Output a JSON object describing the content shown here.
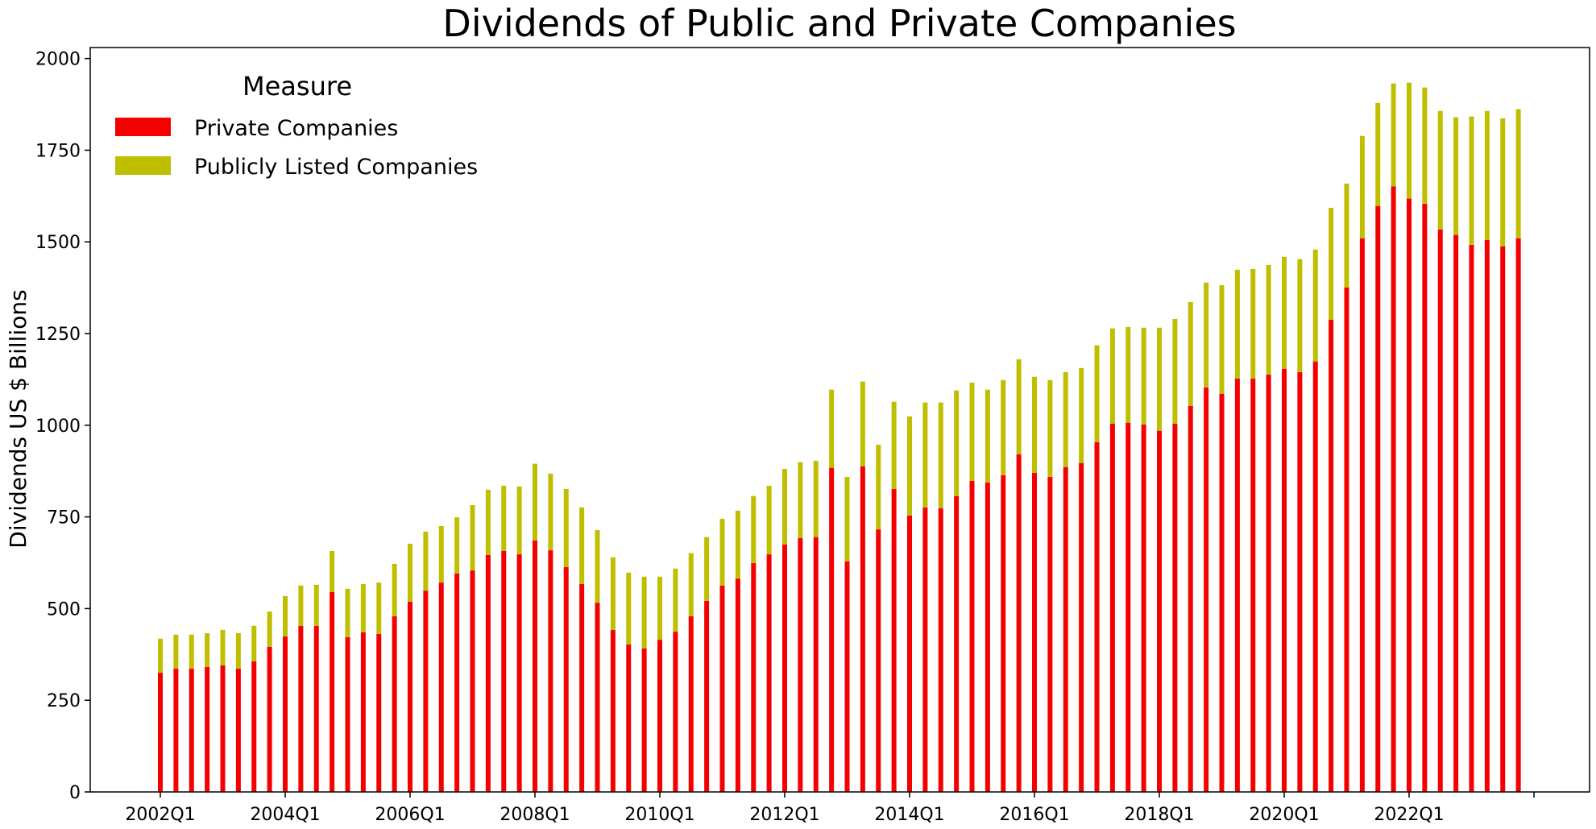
{
  "chart_data": {
    "type": "bar",
    "stacked": true,
    "title": "Dividends of Public and Private Companies",
    "xlabel": "",
    "ylabel": "Dividends US $ Billions",
    "ylim": [
      0,
      2030
    ],
    "yticks": [
      0,
      250,
      500,
      750,
      1000,
      1250,
      1500,
      1750,
      2000
    ],
    "xtick_labels": [
      "2002Q1",
      "2004Q1",
      "2006Q1",
      "2008Q1",
      "2010Q1",
      "2012Q1",
      "2014Q1",
      "2016Q1",
      "2018Q1",
      "2020Q1",
      "2022Q1",
      ""
    ],
    "xtick_every_n_quarters": 8,
    "grid": false,
    "legend": {
      "title": "Measure",
      "placement": "top-left",
      "entries": [
        {
          "label": "Private Companies",
          "color": "#f50000"
        },
        {
          "label": "Publicly Listed Companies",
          "color": "#bfbf00"
        }
      ]
    },
    "categories": [
      "2002Q1",
      "2002Q2",
      "2002Q3",
      "2002Q4",
      "2003Q1",
      "2003Q2",
      "2003Q3",
      "2003Q4",
      "2004Q1",
      "2004Q2",
      "2004Q3",
      "2004Q4",
      "2005Q1",
      "2005Q2",
      "2005Q3",
      "2005Q4",
      "2006Q1",
      "2006Q2",
      "2006Q3",
      "2006Q4",
      "2007Q1",
      "2007Q2",
      "2007Q3",
      "2007Q4",
      "2008Q1",
      "2008Q2",
      "2008Q3",
      "2008Q4",
      "2009Q1",
      "2009Q2",
      "2009Q3",
      "2009Q4",
      "2010Q1",
      "2010Q2",
      "2010Q3",
      "2010Q4",
      "2011Q1",
      "2011Q2",
      "2011Q3",
      "2011Q4",
      "2012Q1",
      "2012Q2",
      "2012Q3",
      "2012Q4",
      "2013Q1",
      "2013Q2",
      "2013Q3",
      "2013Q4",
      "2014Q1",
      "2014Q2",
      "2014Q3",
      "2014Q4",
      "2015Q1",
      "2015Q2",
      "2015Q3",
      "2015Q4",
      "2016Q1",
      "2016Q2",
      "2016Q3",
      "2016Q4",
      "2017Q1",
      "2017Q2",
      "2017Q3",
      "2017Q4",
      "2018Q1",
      "2018Q2",
      "2018Q3",
      "2018Q4",
      "2019Q1",
      "2019Q2",
      "2019Q3",
      "2019Q4",
      "2020Q1",
      "2020Q2",
      "2020Q3",
      "2020Q4",
      "2021Q1",
      "2021Q2",
      "2021Q3",
      "2021Q4",
      "2022Q1",
      "2022Q2",
      "2022Q3",
      "2022Q4",
      "2023Q1",
      "2023Q2",
      "2023Q3",
      "2023Q4"
    ],
    "series": [
      {
        "name": "Private Companies",
        "color": "#f50000",
        "values": [
          325,
          336,
          336,
          341,
          345,
          336,
          356,
          396,
          424,
          453,
          453,
          545,
          422,
          435,
          431,
          479,
          519,
          549,
          571,
          596,
          604,
          646,
          657,
          648,
          686,
          659,
          613,
          567,
          516,
          442,
          402,
          391,
          415,
          437,
          479,
          521,
          563,
          582,
          624,
          648,
          675,
          692,
          695,
          884,
          629,
          888,
          716,
          826,
          754,
          776,
          774,
          807,
          848,
          844,
          864,
          921,
          870,
          859,
          886,
          897,
          954,
          1004,
          1007,
          1002,
          985,
          1004,
          1053,
          1103,
          1086,
          1127,
          1127,
          1138,
          1154,
          1145,
          1174,
          1288,
          1376,
          1510,
          1598,
          1651,
          1618,
          1604,
          1534,
          1519,
          1492,
          1505,
          1488,
          1510
        ]
      },
      {
        "name": "Publicly Listed Companies",
        "color": "#bfbf00",
        "values": [
          93,
          93,
          93,
          92,
          97,
          97,
          97,
          96,
          110,
          110,
          112,
          112,
          132,
          132,
          140,
          143,
          158,
          161,
          154,
          153,
          178,
          178,
          178,
          185,
          209,
          209,
          213,
          209,
          198,
          198,
          196,
          196,
          172,
          172,
          172,
          174,
          182,
          185,
          183,
          187,
          206,
          207,
          208,
          213,
          230,
          231,
          231,
          238,
          270,
          286,
          288,
          288,
          268,
          253,
          259,
          259,
          262,
          264,
          259,
          259,
          264,
          260,
          261,
          264,
          281,
          286,
          283,
          286,
          296,
          297,
          299,
          299,
          305,
          308,
          305,
          305,
          283,
          279,
          281,
          281,
          316,
          317,
          323,
          321,
          350,
          352,
          349,
          352
        ]
      }
    ],
    "totals": [
      418,
      429,
      429,
      433,
      442,
      433,
      453,
      492,
      534,
      563,
      565,
      657,
      554,
      567,
      571,
      622,
      677,
      710,
      725,
      749,
      782,
      824,
      835,
      833,
      895,
      868,
      826,
      776,
      714,
      640,
      598,
      587,
      587,
      609,
      651,
      695,
      745,
      767,
      807,
      835,
      881,
      899,
      903,
      1097,
      859,
      1119,
      947,
      1064,
      1024,
      1062,
      1062,
      1095,
      1116,
      1097,
      1123,
      1180,
      1132,
      1123,
      1145,
      1156,
      1218,
      1264,
      1268,
      1266,
      1266,
      1290,
      1336,
      1389,
      1382,
      1424,
      1426,
      1437,
      1459,
      1453,
      1479,
      1593,
      1659,
      1789,
      1879,
      1932,
      1934,
      1921,
      1857,
      1840,
      1842,
      1857,
      1837,
      1862
    ]
  }
}
